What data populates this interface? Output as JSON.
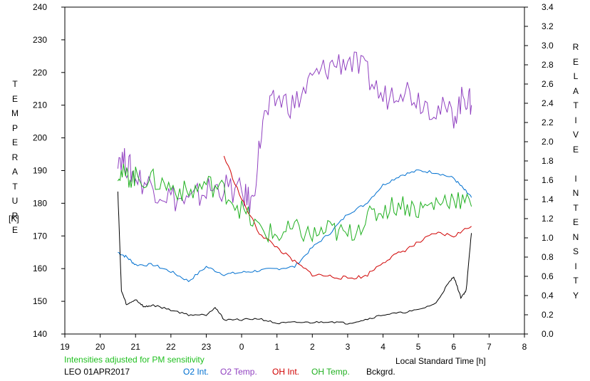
{
  "chart_data": {
    "type": "line",
    "x_axis": {
      "label": "Local Standard Time [h]",
      "ticks": [
        "19",
        "20",
        "21",
        "22",
        "23",
        "0",
        "1",
        "2",
        "3",
        "4",
        "5",
        "6",
        "7",
        "8"
      ]
    },
    "y_left": {
      "label": "TEMPERATURE",
      "unit": "[K]",
      "range": [
        140,
        240
      ],
      "ticks": [
        "140",
        "150",
        "160",
        "170",
        "180",
        "190",
        "200",
        "210",
        "220",
        "230",
        "240"
      ]
    },
    "y_right": {
      "label": "RELATIVE INTENSITY",
      "range": [
        0.0,
        3.4
      ],
      "ticks": [
        "0.0",
        "0.2",
        "0.4",
        "0.6",
        "0.8",
        "1.0",
        "1.2",
        "1.4",
        "1.6",
        "1.8",
        "2.0",
        "2.2",
        "2.4",
        "2.6",
        "2.8",
        "3.0",
        "3.2",
        "3.4"
      ]
    },
    "grid": false,
    "legend_placement": "bottom",
    "note": "Intensities adjusted for PM sensitivity",
    "site_date": "LEO 01APR2017",
    "series": [
      {
        "name": "O2 Int.",
        "axis": "right",
        "color": "#0070d0",
        "x": [
          20.5,
          20.75,
          21.0,
          21.5,
          22.0,
          22.5,
          23.0,
          23.5,
          24.0,
          24.5,
          25.0,
          25.5,
          26.0,
          26.5,
          27.0,
          27.5,
          28.0,
          28.5,
          29.0,
          29.5,
          30.0,
          30.3,
          30.5
        ],
        "y": [
          0.85,
          0.8,
          0.72,
          0.72,
          0.65,
          0.55,
          0.7,
          0.62,
          0.64,
          0.66,
          0.68,
          0.7,
          0.9,
          1.05,
          1.25,
          1.35,
          1.55,
          1.65,
          1.7,
          1.68,
          1.62,
          1.5,
          1.42
        ]
      },
      {
        "name": "O2 Temp.",
        "axis": "left",
        "color": "#9040c0",
        "x": [
          20.5,
          20.75,
          21.0,
          21.5,
          22.0,
          22.5,
          23.0,
          23.5,
          24.0,
          24.3,
          24.6,
          25.0,
          25.5,
          26.0,
          26.5,
          27.0,
          27.5,
          28.0,
          28.5,
          29.0,
          29.5,
          30.0,
          30.3,
          30.5
        ],
        "y": [
          195,
          192,
          188,
          185,
          182,
          180,
          184,
          185,
          183,
          180,
          205,
          212,
          210,
          218,
          222,
          224,
          220,
          212,
          216,
          212,
          209,
          207,
          213,
          210
        ]
      },
      {
        "name": "OH Int.",
        "axis": "right",
        "color": "#d00000",
        "x": [
          23.5,
          24.0,
          24.5,
          25.0,
          25.5,
          26.0,
          26.5,
          27.0,
          27.5,
          28.0,
          28.5,
          29.0,
          29.5,
          30.0,
          30.5
        ],
        "y": [
          1.85,
          1.4,
          1.05,
          0.9,
          0.75,
          0.62,
          0.6,
          0.58,
          0.6,
          0.75,
          0.85,
          0.95,
          1.05,
          1.02,
          1.12
        ]
      },
      {
        "name": "OH Temp.",
        "axis": "left",
        "color": "#20b020",
        "x": [
          20.5,
          20.75,
          21.0,
          21.5,
          22.0,
          22.5,
          23.0,
          23.5,
          24.0,
          24.5,
          25.0,
          25.5,
          26.0,
          26.5,
          27.0,
          27.5,
          28.0,
          28.5,
          29.0,
          29.5,
          30.0,
          30.5
        ],
        "y": [
          190,
          188,
          188,
          187,
          185,
          183,
          186,
          184,
          178,
          172,
          170,
          172,
          170,
          172,
          170,
          175,
          178,
          180,
          178,
          180,
          182,
          179
        ]
      },
      {
        "name": "Bckgrd.",
        "axis": "right",
        "color": "#000000",
        "x": [
          20.5,
          20.6,
          20.75,
          21.0,
          21.25,
          21.5,
          22.0,
          22.5,
          23.0,
          23.25,
          23.5,
          24.0,
          24.5,
          25.0,
          25.5,
          26.0,
          26.5,
          27.0,
          27.5,
          28.0,
          28.5,
          29.0,
          29.5,
          29.8,
          30.0,
          30.2,
          30.35,
          30.5
        ],
        "y": [
          1.48,
          0.45,
          0.3,
          0.36,
          0.28,
          0.3,
          0.25,
          0.2,
          0.2,
          0.28,
          0.15,
          0.15,
          0.16,
          0.11,
          0.12,
          0.12,
          0.13,
          0.11,
          0.15,
          0.2,
          0.22,
          0.25,
          0.32,
          0.5,
          0.6,
          0.38,
          0.45,
          1.05
        ]
      }
    ]
  }
}
